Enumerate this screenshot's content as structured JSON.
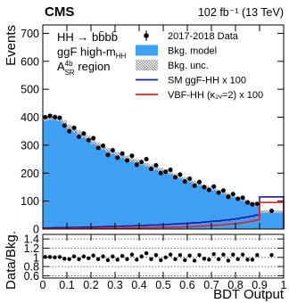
{
  "chart_data": [
    {
      "type": "histogram",
      "title": "CMS",
      "subtitle": "102 fb⁻¹ (13 TeV)",
      "ylabel": "Events",
      "annotations": [
        {
          "text": "HH → bb̄bb̄"
        },
        {
          "text": "ggF high-m",
          "sub": "HH"
        },
        {
          "text": "A",
          "sup": "4b",
          "sub": "SR",
          "tail": " region"
        }
      ],
      "bins": [
        0,
        0.02,
        0.04,
        0.06,
        0.08,
        0.1,
        0.12,
        0.14,
        0.16,
        0.18,
        0.2,
        0.22,
        0.24,
        0.26,
        0.28,
        0.3,
        0.32,
        0.34,
        0.36,
        0.38,
        0.4,
        0.42,
        0.44,
        0.46,
        0.48,
        0.5,
        0.52,
        0.54,
        0.56,
        0.58,
        0.6,
        0.62,
        0.64,
        0.66,
        0.68,
        0.7,
        0.72,
        0.74,
        0.76,
        0.78,
        0.8,
        0.82,
        0.84,
        0.86,
        0.88,
        0.9,
        1.0
      ],
      "series": [
        {
          "name": "2017-2018 Data",
          "style": "points",
          "color": "#000000",
          "values": [
            400,
            405,
            400,
            398,
            370,
            350,
            362,
            330,
            342,
            318,
            325,
            290,
            298,
            265,
            282,
            255,
            270,
            245,
            262,
            230,
            240,
            250,
            215,
            228,
            200,
            205,
            212,
            185,
            195,
            170,
            180,
            155,
            168,
            150,
            140,
            152,
            130,
            138,
            115,
            125,
            108,
            112,
            95,
            88,
            90,
            65
          ]
        },
        {
          "name": "Bkg. model",
          "style": "filled",
          "color": "#3f9ff2",
          "values": [
            395,
            400,
            400,
            395,
            380,
            365,
            355,
            345,
            335,
            325,
            312,
            302,
            292,
            283,
            276,
            268,
            262,
            255,
            248,
            242,
            236,
            230,
            224,
            218,
            212,
            206,
            200,
            193,
            186,
            180,
            173,
            166,
            160,
            154,
            148,
            142,
            136,
            130,
            124,
            118,
            112,
            106,
            100,
            93,
            86,
            62
          ]
        },
        {
          "name": "Bkg. unc.",
          "style": "hatched",
          "color": "#888888",
          "values": [
            10,
            10,
            10,
            10,
            10,
            9,
            9,
            9,
            9,
            9,
            9,
            8,
            8,
            8,
            8,
            8,
            8,
            8,
            7,
            7,
            7,
            7,
            7,
            7,
            7,
            7,
            6,
            6,
            6,
            6,
            6,
            6,
            6,
            6,
            6,
            5,
            5,
            5,
            5,
            5,
            5,
            5,
            5,
            5,
            5,
            5
          ]
        },
        {
          "name": "SM ggF-HH x 100",
          "style": "step",
          "color": "#1a1aa6",
          "values": [
            4,
            4,
            5,
            5,
            5,
            6,
            6,
            6,
            7,
            7,
            7,
            8,
            8,
            9,
            9,
            10,
            10,
            11,
            11,
            12,
            12,
            13,
            14,
            14,
            15,
            16,
            17,
            18,
            19,
            20,
            21,
            22,
            23,
            25,
            26,
            28,
            29,
            31,
            33,
            35,
            37,
            40,
            43,
            46,
            50,
            115
          ]
        },
        {
          "name": "VBF-HH (κ₂ᵥ=2) x 100",
          "style": "step",
          "color": "#e8201e",
          "values": [
            1,
            1,
            1,
            1,
            1,
            1,
            2,
            2,
            2,
            2,
            2,
            2,
            3,
            3,
            3,
            3,
            3,
            4,
            4,
            4,
            4,
            5,
            5,
            5,
            6,
            6,
            6,
            7,
            7,
            8,
            8,
            9,
            10,
            11,
            12,
            13,
            14,
            15,
            17,
            18,
            20,
            22,
            25,
            28,
            32,
            95
          ]
        }
      ],
      "legend": "upper right",
      "xlim": [
        0,
        1
      ],
      "xticks": [
        0,
        0.1,
        0.2,
        0.3,
        0.4,
        0.5,
        0.6,
        0.7,
        0.8,
        0.9,
        1
      ],
      "ylim": [
        0,
        730
      ],
      "yticks": [
        0,
        100,
        200,
        300,
        400,
        500,
        600,
        700
      ]
    },
    {
      "type": "scatter",
      "ylabel": "Data/Bkg.",
      "xlabel": "BDT Output",
      "bins": [
        0,
        0.02,
        0.04,
        0.06,
        0.08,
        0.1,
        0.12,
        0.14,
        0.16,
        0.18,
        0.2,
        0.22,
        0.24,
        0.26,
        0.28,
        0.3,
        0.32,
        0.34,
        0.36,
        0.38,
        0.4,
        0.42,
        0.44,
        0.46,
        0.48,
        0.5,
        0.52,
        0.54,
        0.56,
        0.58,
        0.6,
        0.62,
        0.64,
        0.66,
        0.68,
        0.7,
        0.72,
        0.74,
        0.76,
        0.78,
        0.8,
        0.82,
        0.84,
        0.86,
        0.88,
        0.9,
        1.0
      ],
      "color": "#000000",
      "values": [
        1.01,
        1.01,
        1.0,
        1.01,
        0.97,
        0.96,
        1.02,
        0.96,
        1.02,
        0.98,
        1.04,
        0.96,
        1.02,
        0.94,
        1.02,
        0.95,
        1.03,
        0.96,
        1.06,
        0.95,
        1.02,
        1.09,
        0.96,
        1.05,
        0.94,
        1.0,
        1.06,
        0.96,
        1.05,
        0.94,
        1.04,
        0.93,
        1.05,
        0.97,
        0.95,
        1.07,
        0.96,
        1.06,
        0.93,
        1.06,
        0.96,
        1.06,
        0.95,
        0.95,
        1.05,
        1.05
      ],
      "grid": true,
      "xlim": [
        0,
        1
      ],
      "xticks": [
        0,
        0.1,
        0.2,
        0.3,
        0.4,
        0.5,
        0.6,
        0.7,
        0.8,
        0.9,
        1
      ],
      "ylim": [
        0.55,
        1.5
      ],
      "yticks": [
        0.6,
        0.8,
        1,
        1.2,
        1.4
      ]
    }
  ]
}
